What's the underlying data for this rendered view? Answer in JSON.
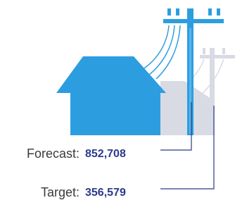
{
  "forecast": {
    "label": "Forecast:",
    "value": "852,708"
  },
  "target": {
    "label": "Target:",
    "value": "356,579"
  }
}
